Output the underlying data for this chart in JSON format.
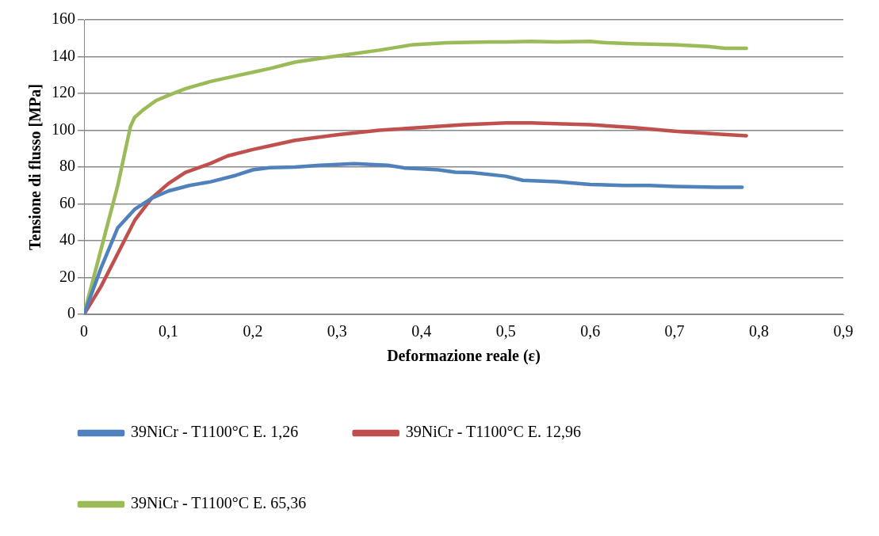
{
  "chart_data": {
    "type": "line",
    "xlabel": "Deformazione reale (ε)",
    "ylabel": "Tensione di flusso [MPa]",
    "xlim": [
      0,
      0.9
    ],
    "xticks": [
      {
        "value": 0,
        "label": "0"
      },
      {
        "value": 0.1,
        "label": "0,1"
      },
      {
        "value": 0.2,
        "label": "0,2"
      },
      {
        "value": 0.3,
        "label": "0,3"
      },
      {
        "value": 0.4,
        "label": "0,4"
      },
      {
        "value": 0.5,
        "label": "0,5"
      },
      {
        "value": 0.6,
        "label": "0,6"
      },
      {
        "value": 0.7,
        "label": "0,7"
      },
      {
        "value": 0.8,
        "label": "0,8"
      },
      {
        "value": 0.9,
        "label": "0,9"
      }
    ],
    "ylim": [
      0,
      160
    ],
    "yticks": [
      0,
      20,
      40,
      60,
      80,
      100,
      120,
      140,
      160
    ],
    "grid": "y",
    "legend": "bottom",
    "marker": "none",
    "line_style": "solid",
    "series": [
      {
        "name": "39NiCr - T1100°C E. 1,26",
        "color": "#4f81bd",
        "x": [
          0,
          0.02,
          0.04,
          0.06,
          0.08,
          0.1,
          0.125,
          0.15,
          0.18,
          0.2,
          0.22,
          0.25,
          0.28,
          0.32,
          0.36,
          0.38,
          0.4,
          0.42,
          0.44,
          0.46,
          0.5,
          0.52,
          0.56,
          0.6,
          0.64,
          0.67,
          0.7,
          0.75,
          0.78
        ],
        "values": [
          0,
          25,
          47,
          57,
          63,
          67,
          70,
          72,
          75.5,
          78.5,
          79.7,
          80,
          81,
          81.8,
          81,
          79.5,
          79,
          78.5,
          77.2,
          77,
          75,
          72.8,
          72,
          70.5,
          70,
          70,
          69.5,
          69,
          69
        ]
      },
      {
        "name": "39NiCr - T1100°C E. 12,96",
        "color": "#c0504d",
        "x": [
          0,
          0.02,
          0.04,
          0.06,
          0.08,
          0.1,
          0.12,
          0.15,
          0.17,
          0.2,
          0.22,
          0.25,
          0.3,
          0.35,
          0.4,
          0.45,
          0.5,
          0.53,
          0.56,
          0.6,
          0.65,
          0.7,
          0.75,
          0.785
        ],
        "values": [
          0,
          15,
          33,
          51,
          63,
          71,
          77,
          82,
          86,
          89.5,
          91.5,
          94.5,
          97.5,
          100,
          101.5,
          103,
          104,
          104,
          103.5,
          103,
          101.5,
          99.5,
          98,
          97
        ]
      },
      {
        "name": "39NiCr - T1100°C E. 65,36",
        "color": "#9bbb59",
        "x": [
          0,
          0.02,
          0.04,
          0.055,
          0.06,
          0.07,
          0.085,
          0.1,
          0.12,
          0.15,
          0.18,
          0.2,
          0.22,
          0.25,
          0.28,
          0.31,
          0.35,
          0.37,
          0.39,
          0.41,
          0.43,
          0.48,
          0.5,
          0.53,
          0.56,
          0.6,
          0.62,
          0.65,
          0.7,
          0.74,
          0.76,
          0.785
        ],
        "values": [
          0,
          35,
          70,
          102,
          107,
          111,
          116,
          119,
          122.5,
          126.5,
          129.5,
          131.5,
          133.5,
          137,
          139,
          141,
          143.5,
          145,
          146.5,
          147,
          147.5,
          148,
          148,
          148.3,
          148,
          148.3,
          147.5,
          147,
          146.5,
          145.5,
          144.5,
          144.5
        ]
      }
    ]
  }
}
